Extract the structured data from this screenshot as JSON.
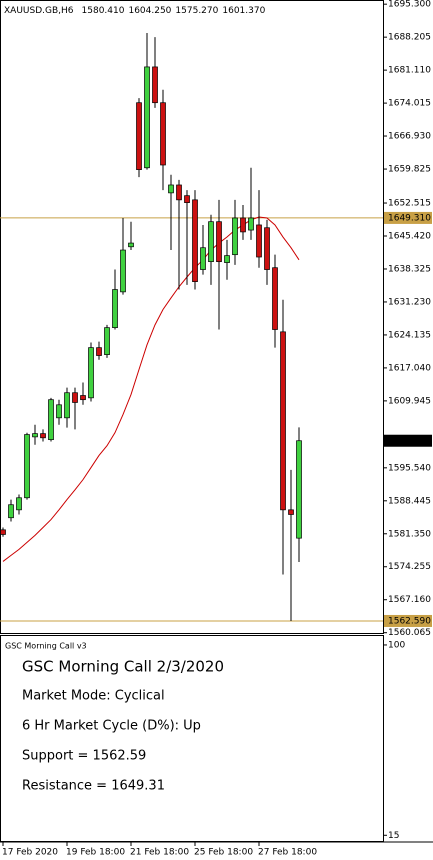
{
  "chart_data": {
    "type": "candlestick",
    "title": "XAUUSD.GB,H6",
    "header_values": [
      {
        "value": 1580.41,
        "label": "1580.410"
      },
      {
        "value": 1604.25,
        "label": "1604.250"
      },
      {
        "value": 1575.27,
        "label": "1575.270"
      },
      {
        "value": 1601.37,
        "label": "1601.370"
      }
    ],
    "categories": [
      "17 Feb 2020",
      null,
      null,
      null,
      null,
      null,
      null,
      null,
      "19 Feb 18:00",
      null,
      null,
      null,
      null,
      null,
      null,
      null,
      "21 Feb 18:00",
      null,
      null,
      null,
      null,
      null,
      null,
      null,
      "25 Feb 18:00",
      null,
      null,
      null,
      null,
      null,
      null,
      null,
      "27 Feb 18:00",
      null,
      null,
      null,
      null,
      null
    ],
    "open": [
      1582.2,
      1584.8,
      1586.5,
      1589.1,
      1602.2,
      1602.9,
      1601.6,
      1606.3,
      1606.3,
      1611.7,
      1611.1,
      1610.6,
      1621.4,
      1619.9,
      1625.7,
      1633.4,
      1643.1,
      1674.1,
      1660.1,
      1681.8,
      1674.1,
      1654.7,
      1656.4,
      1654.1,
      1653.2,
      1638.2,
      1639.9,
      1648.5,
      1639.7,
      1641.4,
      1649.3,
      1646.7,
      1647.8,
      1647.2,
      1638.6,
      1624.8,
      1586.5,
      1580.41
    ],
    "high": [
      1582.7,
      1588.7,
      1589.8,
      1603.1,
      1604.8,
      1603.8,
      1610.6,
      1610.2,
      1612.8,
      1612.8,
      1613.9,
      1622.5,
      1622.7,
      1626.3,
      1638.2,
      1649.3,
      1648.5,
      1675.1,
      1689.1,
      1688.2,
      1676.9,
      1658.6,
      1657.5,
      1655.3,
      1655.3,
      1647.8,
      1650.0,
      1653.2,
      1644.6,
      1653.2,
      1652.1,
      1660.1,
      1655.3,
      1648.9,
      1641.4,
      1631.7,
      1595.1,
      1604.25
    ],
    "low": [
      1580.7,
      1584.0,
      1585.5,
      1588.7,
      1600.5,
      1601.2,
      1601.2,
      1604.8,
      1604.2,
      1603.8,
      1609.1,
      1609.8,
      1618.8,
      1619.2,
      1625.3,
      1632.8,
      1642.4,
      1658.1,
      1659.7,
      1673.0,
      1655.3,
      1642.4,
      1633.9,
      1634.9,
      1633.9,
      1637.1,
      1634.9,
      1625.3,
      1636.0,
      1639.2,
      1644.6,
      1644.6,
      1638.6,
      1634.9,
      1621.4,
      1572.6,
      1562.59,
      1575.27
    ],
    "close": [
      1581.2,
      1587.6,
      1589.1,
      1602.7,
      1602.9,
      1602.0,
      1610.2,
      1609.1,
      1611.7,
      1609.6,
      1610.2,
      1621.4,
      1619.7,
      1625.7,
      1633.9,
      1642.4,
      1643.9,
      1659.7,
      1681.8,
      1674.1,
      1660.7,
      1656.4,
      1653.2,
      1652.6,
      1635.6,
      1642.9,
      1648.5,
      1639.9,
      1641.2,
      1649.3,
      1646.3,
      1649.3,
      1640.9,
      1638.2,
      1625.3,
      1586.5,
      1585.5,
      1601.37
    ],
    "up_color": "#3fd13f",
    "down_color": "#cc1111",
    "moving_average": {
      "color": "#cc0000",
      "values": [
        1575.4,
        1576.7,
        1578.0,
        1579.5,
        1581.0,
        1582.7,
        1584.4,
        1586.5,
        1588.7,
        1590.8,
        1593.0,
        1595.6,
        1598.2,
        1600.3,
        1603.1,
        1607.0,
        1611.3,
        1616.7,
        1622.0,
        1626.3,
        1629.6,
        1632.1,
        1634.5,
        1636.6,
        1638.6,
        1640.3,
        1642.4,
        1643.9,
        1645.2,
        1646.7,
        1647.8,
        1648.9,
        1649.5,
        1649.3,
        1647.8,
        1645.2,
        1642.9,
        1640.3
      ]
    },
    "hlines": [
      {
        "value": 1649.31,
        "label": "1649.310",
        "color": "#c8a046"
      },
      {
        "value": 1562.59,
        "label": "1562.590",
        "color": "#c8a046"
      }
    ],
    "last_price": {
      "value": 1601.37,
      "label": "1601.370"
    },
    "ylim": [
      1560.0,
      1696.2
    ],
    "yticks": [
      {
        "value": 1695.3,
        "label": "1695.300"
      },
      1688.205,
      {
        "value": 1681.11,
        "label": "1681.110"
      },
      1674.015,
      {
        "value": 1666.93,
        "label": "1666.930"
      },
      1659.825,
      1652.515,
      {
        "value": 1645.42,
        "label": "1645.420"
      },
      1638.325,
      {
        "value": 1631.23,
        "label": "1631.230"
      },
      1624.135,
      {
        "value": 1617.04,
        "label": "1617.040"
      },
      1609.945,
      {
        "value": 1595.54,
        "label": "1595.540"
      },
      1588.445,
      {
        "value": 1581.35,
        "label": "1581.350"
      },
      1574.255,
      {
        "value": 1567.16,
        "label": "1567.160"
      },
      1560.065
    ],
    "panel": {
      "name": "GSC Morning Call v3",
      "title": "GSC Morning Call 2/3/2020",
      "title_color": "#b8860b",
      "lines": [
        "Market Mode: Cyclical",
        "6 Hr Market Cycle (D%): Up",
        "Support = 1562.59",
        "Resistance = 1649.31"
      ],
      "ylim": [
        12,
        104
      ],
      "yticks": [
        15,
        100
      ]
    }
  }
}
